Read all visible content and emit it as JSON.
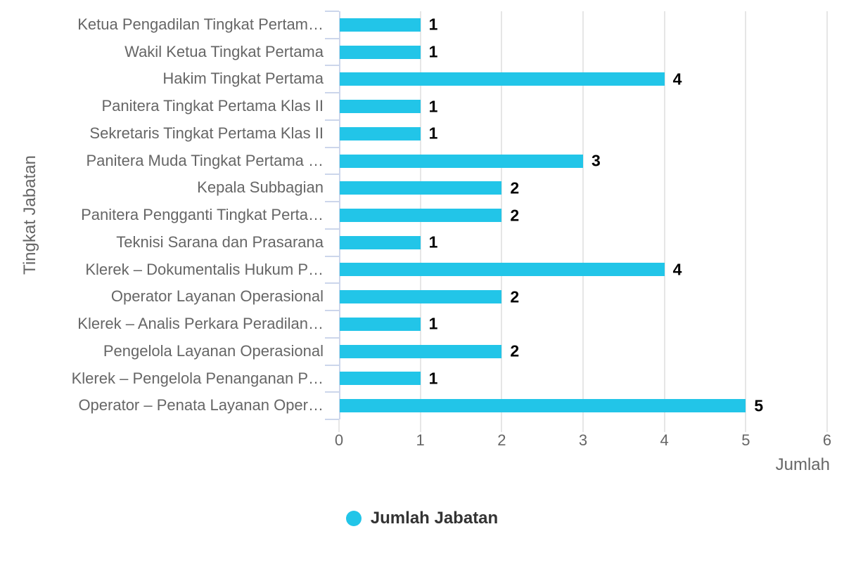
{
  "chart_data": {
    "type": "bar",
    "orientation": "horizontal",
    "title": "",
    "categories": [
      "Ketua Pengadilan Tingkat Pertam…",
      "Wakil Ketua Tingkat Pertama",
      "Hakim Tingkat Pertama",
      "Panitera Tingkat Pertama Klas II",
      "Sekretaris Tingkat Pertama Klas II",
      "Panitera Muda Tingkat Pertama …",
      "Kepala Subbagian",
      "Panitera Pengganti Tingkat Perta…",
      "Teknisi Sarana dan Prasarana",
      "Klerek – Dokumentalis Hukum P…",
      "Operator Layanan Operasional",
      "Klerek – Analis Perkara Peradilan…",
      "Pengelola Layanan Operasional",
      "Klerek – Pengelola Penanganan P…",
      "Operator – Penata Layanan Oper…"
    ],
    "values": [
      1,
      1,
      4,
      1,
      1,
      3,
      2,
      2,
      1,
      4,
      2,
      1,
      2,
      1,
      5
    ],
    "data_labels": [
      "1",
      "1",
      "4",
      "1",
      "1",
      "3",
      "2",
      "2",
      "1",
      "4",
      "2",
      "1",
      "2",
      "1",
      "5"
    ],
    "series_name": "Jumlah Jabatan",
    "xlabel": "Jumlah",
    "ylabel": "Tingkat Jabatan",
    "xlim": [
      0,
      6
    ],
    "xticks": [
      "0",
      "1",
      "2",
      "3",
      "4",
      "5",
      "6"
    ],
    "grid": true,
    "legend_position": "bottom"
  },
  "legend": {
    "label": "Jumlah Jabatan"
  },
  "colors": {
    "bar": "#22c5e8",
    "axis_line": "#ccd6eb",
    "category_tick": "#ccd6eb",
    "gridline": "#e6e6e6",
    "bottom_tick": "#e6e6e6",
    "axis_label": "#666666",
    "axis_title": "#666666",
    "data_label": "#000000",
    "legend_text": "#333333",
    "background": "#ffffff"
  }
}
